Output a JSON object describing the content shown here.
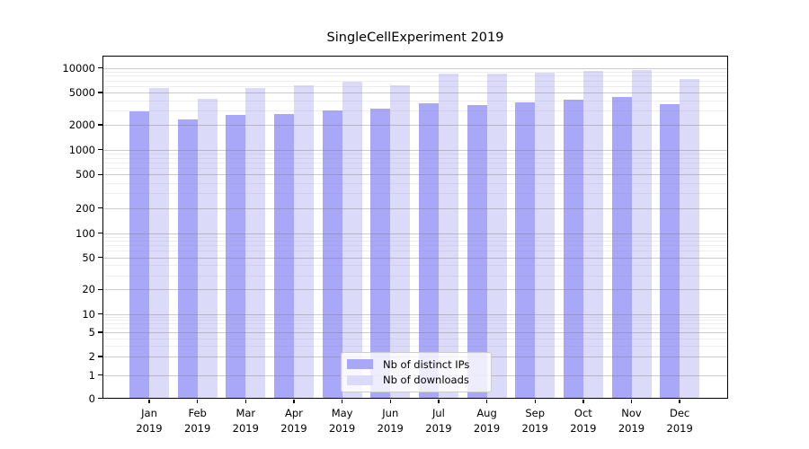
{
  "title": "SingleCellExperiment 2019",
  "colors": {
    "distinct_ips_bar": "#a9a7f8",
    "downloads_bar": "#dbdaf9",
    "axis": "#000000",
    "major_grid": "#c9c9c9",
    "minor_grid": "#e9e9e9",
    "legend_border": "#cccccc"
  },
  "chart_data": {
    "type": "bar",
    "title": "SingleCellExperiment 2019",
    "categories": [
      "Jan 2019",
      "Feb 2019",
      "Mar 2019",
      "Apr 2019",
      "May 2019",
      "Jun 2019",
      "Jul 2019",
      "Aug 2019",
      "Sep 2019",
      "Oct 2019",
      "Nov 2019",
      "Dec 2019"
    ],
    "series": [
      {
        "name": "Nb of distinct IPs",
        "color": "#a9a7f8",
        "values": [
          2900,
          2310,
          2640,
          2700,
          3020,
          3150,
          3700,
          3540,
          3800,
          4060,
          4380,
          3570
        ]
      },
      {
        "name": "Nb of downloads",
        "color": "#dbdaf9",
        "values": [
          5630,
          4160,
          5640,
          6030,
          6730,
          6140,
          8430,
          8430,
          8650,
          9200,
          9440,
          7260
        ]
      }
    ],
    "xlabel": "",
    "ylabel": "",
    "yscale": "symlog",
    "yticks": [
      0,
      1,
      2,
      5,
      10,
      20,
      50,
      100,
      200,
      500,
      1000,
      2000,
      5000,
      10000
    ],
    "ylim": [
      0,
      13900
    ],
    "grid": "horizontal major and minor gridlines, drawn over bars",
    "legend_position": "inside plot, lower center"
  }
}
